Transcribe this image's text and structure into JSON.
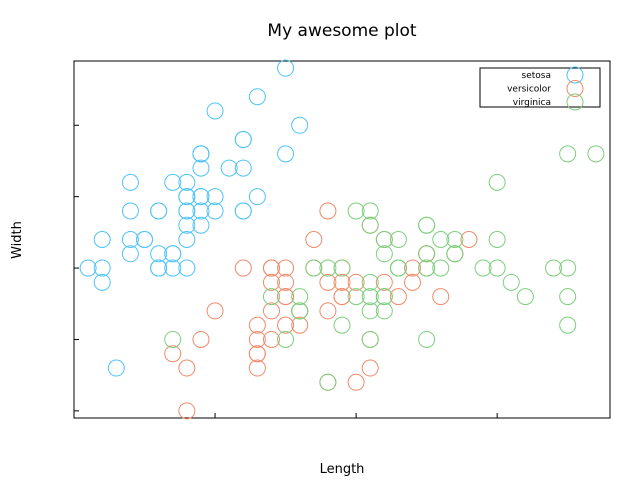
{
  "chart_data": {
    "type": "scatter",
    "title": "My awesome plot",
    "xlabel": "Length",
    "ylabel": "Width",
    "xlim": [
      4.2,
      8.0
    ],
    "ylim": [
      1.95,
      4.45
    ],
    "x_ticks": [
      4.2,
      5.2,
      6.2,
      7.2,
      8.0
    ],
    "y_ticks": [
      2.0,
      2.5,
      3.0,
      3.5,
      4.0
    ],
    "grid": false,
    "legend_position": "top-right",
    "series": [
      {
        "name": "setosa",
        "color": "#4fc3f7",
        "points": [
          [
            5.1,
            3.5
          ],
          [
            4.9,
            3.0
          ],
          [
            4.7,
            3.2
          ],
          [
            4.6,
            3.1
          ],
          [
            5.0,
            3.6
          ],
          [
            5.4,
            3.9
          ],
          [
            4.6,
            3.4
          ],
          [
            5.0,
            3.4
          ],
          [
            4.4,
            2.9
          ],
          [
            4.9,
            3.1
          ],
          [
            5.4,
            3.7
          ],
          [
            4.8,
            3.4
          ],
          [
            4.8,
            3.0
          ],
          [
            4.3,
            3.0
          ],
          [
            5.8,
            4.0
          ],
          [
            5.7,
            4.4
          ],
          [
            5.4,
            3.9
          ],
          [
            5.1,
            3.5
          ],
          [
            5.7,
            3.8
          ],
          [
            5.1,
            3.8
          ],
          [
            5.4,
            3.4
          ],
          [
            5.1,
            3.7
          ],
          [
            4.6,
            3.6
          ],
          [
            5.1,
            3.3
          ],
          [
            4.8,
            3.4
          ],
          [
            5.0,
            3.0
          ],
          [
            5.0,
            3.4
          ],
          [
            5.2,
            3.5
          ],
          [
            5.2,
            3.4
          ],
          [
            4.7,
            3.2
          ],
          [
            4.8,
            3.1
          ],
          [
            5.4,
            3.4
          ],
          [
            5.2,
            4.1
          ],
          [
            5.5,
            4.2
          ],
          [
            4.9,
            3.1
          ],
          [
            5.0,
            3.2
          ],
          [
            5.5,
            3.5
          ],
          [
            4.9,
            3.6
          ],
          [
            4.4,
            3.0
          ],
          [
            5.1,
            3.4
          ],
          [
            5.0,
            3.5
          ],
          [
            4.5,
            2.3
          ],
          [
            4.4,
            3.2
          ],
          [
            5.0,
            3.5
          ],
          [
            5.1,
            3.8
          ],
          [
            4.8,
            3.0
          ],
          [
            5.1,
            3.8
          ],
          [
            4.6,
            3.2
          ],
          [
            5.3,
            3.7
          ],
          [
            5.0,
            3.3
          ]
        ]
      },
      {
        "name": "versicolor",
        "color": "#f08a6a",
        "points": [
          [
            7.0,
            3.2
          ],
          [
            6.4,
            3.2
          ],
          [
            6.9,
            3.1
          ],
          [
            5.5,
            2.3
          ],
          [
            6.5,
            2.8
          ],
          [
            5.7,
            2.8
          ],
          [
            6.3,
            3.3
          ],
          [
            4.9,
            2.4
          ],
          [
            6.6,
            2.9
          ],
          [
            5.2,
            2.7
          ],
          [
            5.0,
            2.0
          ],
          [
            5.9,
            3.0
          ],
          [
            6.0,
            2.2
          ],
          [
            6.1,
            2.9
          ],
          [
            5.6,
            2.9
          ],
          [
            6.7,
            3.1
          ],
          [
            5.6,
            3.0
          ],
          [
            5.8,
            2.7
          ],
          [
            6.2,
            2.2
          ],
          [
            5.6,
            2.5
          ],
          [
            5.9,
            3.2
          ],
          [
            6.1,
            2.8
          ],
          [
            6.3,
            2.5
          ],
          [
            6.1,
            2.8
          ],
          [
            6.4,
            2.9
          ],
          [
            6.6,
            3.0
          ],
          [
            6.8,
            2.8
          ],
          [
            6.7,
            3.0
          ],
          [
            6.0,
            2.9
          ],
          [
            5.7,
            2.6
          ],
          [
            5.5,
            2.4
          ],
          [
            5.5,
            2.4
          ],
          [
            5.8,
            2.7
          ],
          [
            6.0,
            2.7
          ],
          [
            5.4,
            3.0
          ],
          [
            6.0,
            3.4
          ],
          [
            6.7,
            3.1
          ],
          [
            6.3,
            2.3
          ],
          [
            5.6,
            3.0
          ],
          [
            5.5,
            2.5
          ],
          [
            5.5,
            2.6
          ],
          [
            6.1,
            3.0
          ],
          [
            5.8,
            2.6
          ],
          [
            5.0,
            2.3
          ],
          [
            5.6,
            2.7
          ],
          [
            5.7,
            3.0
          ],
          [
            5.7,
            2.9
          ],
          [
            6.2,
            2.9
          ],
          [
            5.1,
            2.5
          ],
          [
            5.7,
            2.8
          ]
        ]
      },
      {
        "name": "virginica",
        "color": "#7ccf7c",
        "points": [
          [
            6.3,
            3.3
          ],
          [
            5.8,
            2.7
          ],
          [
            7.1,
            3.0
          ],
          [
            6.3,
            2.9
          ],
          [
            6.5,
            3.0
          ],
          [
            7.6,
            3.0
          ],
          [
            4.9,
            2.5
          ],
          [
            7.3,
            2.9
          ],
          [
            6.7,
            2.5
          ],
          [
            7.2,
            3.6
          ],
          [
            6.5,
            3.2
          ],
          [
            6.4,
            2.7
          ],
          [
            6.8,
            3.0
          ],
          [
            5.7,
            2.5
          ],
          [
            5.8,
            2.8
          ],
          [
            6.4,
            3.2
          ],
          [
            6.5,
            3.0
          ],
          [
            7.7,
            3.8
          ],
          [
            7.7,
            2.6
          ],
          [
            6.0,
            2.2
          ],
          [
            6.9,
            3.2
          ],
          [
            5.6,
            2.8
          ],
          [
            7.7,
            2.8
          ],
          [
            6.3,
            2.7
          ],
          [
            6.7,
            3.3
          ],
          [
            7.2,
            3.2
          ],
          [
            6.2,
            2.8
          ],
          [
            6.1,
            3.0
          ],
          [
            6.4,
            2.8
          ],
          [
            7.2,
            3.0
          ],
          [
            7.4,
            2.8
          ],
          [
            7.9,
            3.8
          ],
          [
            6.4,
            2.8
          ],
          [
            6.3,
            2.8
          ],
          [
            6.1,
            2.6
          ],
          [
            7.7,
            3.0
          ],
          [
            6.3,
            3.4
          ],
          [
            6.4,
            3.1
          ],
          [
            6.0,
            3.0
          ],
          [
            6.9,
            3.1
          ],
          [
            6.7,
            3.1
          ],
          [
            6.9,
            3.1
          ],
          [
            5.8,
            2.7
          ],
          [
            6.8,
            3.2
          ],
          [
            6.7,
            3.3
          ],
          [
            6.7,
            3.0
          ],
          [
            6.3,
            2.5
          ],
          [
            6.5,
            3.0
          ],
          [
            6.2,
            3.4
          ],
          [
            5.9,
            3.0
          ]
        ]
      }
    ]
  }
}
